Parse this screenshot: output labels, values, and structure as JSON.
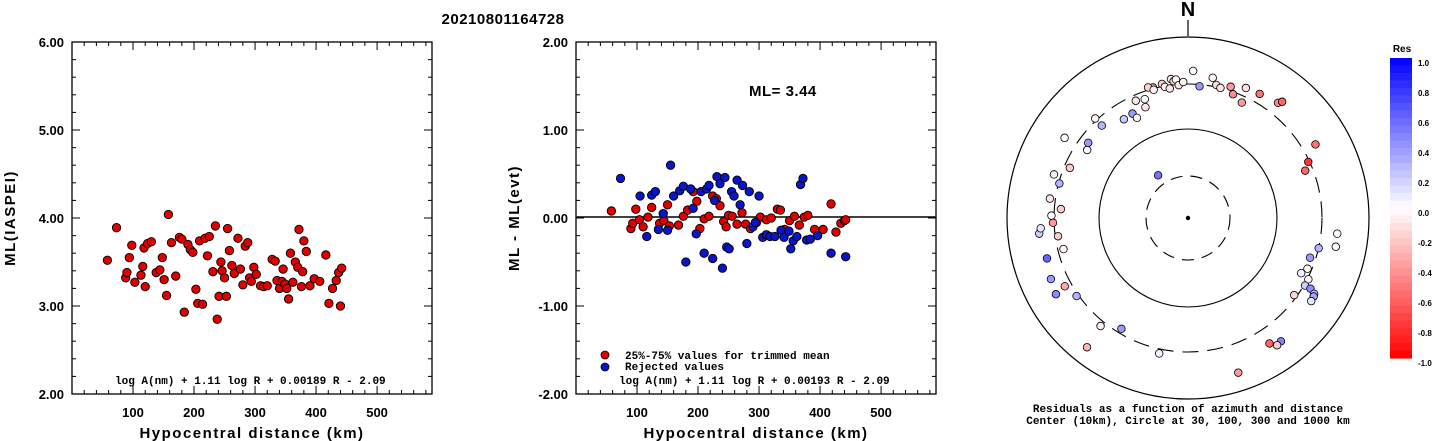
{
  "title": "20210801164728",
  "colors": {
    "red": "#e00000",
    "blue": "#0a14c8"
  },
  "chart_data": [
    {
      "type": "scatter",
      "xlabel": "Hypocentral distance (km)",
      "ylabel": "ML(IASPEI)",
      "xlim": [
        0,
        590
      ],
      "ylim": [
        2.0,
        6.0
      ],
      "xticks": [
        "100",
        "200",
        "300",
        "400",
        "500"
      ],
      "yticks": [
        "2.00",
        "3.00",
        "4.00",
        "5.00",
        "6.00"
      ],
      "formula": "log A(nm) + 1.11 log R + 0.00189 R - 2.09",
      "series": [
        {
          "color": "red",
          "points": [
            [
              58,
              3.52
            ],
            [
              73,
              3.89
            ],
            [
              88,
              3.32
            ],
            [
              90,
              3.38
            ],
            [
              94,
              3.55
            ],
            [
              98,
              3.69
            ],
            [
              103,
              3.27
            ],
            [
              113,
              3.35
            ],
            [
              116,
              3.45
            ],
            [
              118,
              3.66
            ],
            [
              120,
              3.22
            ],
            [
              124,
              3.71
            ],
            [
              130,
              3.73
            ],
            [
              138,
              3.38
            ],
            [
              144,
              3.41
            ],
            [
              148,
              3.55
            ],
            [
              151,
              3.3
            ],
            [
              155,
              3.12
            ],
            [
              158,
              4.04
            ],
            [
              163,
              3.72
            ],
            [
              170,
              3.34
            ],
            [
              176,
              3.78
            ],
            [
              180,
              3.76
            ],
            [
              184,
              2.93
            ],
            [
              190,
              3.7
            ],
            [
              194,
              3.64
            ],
            [
              198,
              3.61
            ],
            [
              203,
              3.19
            ],
            [
              206,
              3.03
            ],
            [
              209,
              3.74
            ],
            [
              214,
              3.02
            ],
            [
              218,
              3.77
            ],
            [
              222,
              3.57
            ],
            [
              225,
              3.79
            ],
            [
              231,
              3.39
            ],
            [
              235,
              3.91
            ],
            [
              238,
              2.85
            ],
            [
              241,
              3.11
            ],
            [
              244,
              3.5
            ],
            [
              246,
              3.4
            ],
            [
              250,
              3.32
            ],
            [
              253,
              3.11
            ],
            [
              255,
              3.88
            ],
            [
              258,
              3.63
            ],
            [
              262,
              3.46
            ],
            [
              266,
              3.37
            ],
            [
              272,
              3.77
            ],
            [
              276,
              3.42
            ],
            [
              280,
              3.24
            ],
            [
              284,
              3.68
            ],
            [
              288,
              3.72
            ],
            [
              291,
              3.32
            ],
            [
              294,
              3.28
            ],
            [
              298,
              3.44
            ],
            [
              302,
              3.36
            ],
            [
              309,
              3.23
            ],
            [
              314,
              3.22
            ],
            [
              320,
              3.23
            ],
            [
              328,
              3.53
            ],
            [
              333,
              3.51
            ],
            [
              336,
              3.29
            ],
            [
              340,
              3.2
            ],
            [
              344,
              3.28
            ],
            [
              346,
              3.42
            ],
            [
              349,
              3.25
            ],
            [
              352,
              3.2
            ],
            [
              355,
              3.08
            ],
            [
              358,
              3.6
            ],
            [
              362,
              3.27
            ],
            [
              366,
              3.5
            ],
            [
              370,
              3.44
            ],
            [
              372,
              3.87
            ],
            [
              376,
              3.22
            ],
            [
              378,
              3.39
            ],
            [
              380,
              3.74
            ],
            [
              384,
              3.62
            ],
            [
              390,
              3.23
            ],
            [
              397,
              3.31
            ],
            [
              406,
              3.28
            ],
            [
              416,
              3.58
            ],
            [
              421,
              3.03
            ],
            [
              427,
              3.2
            ],
            [
              433,
              3.29
            ],
            [
              437,
              3.38
            ],
            [
              440,
              3.0
            ],
            [
              442,
              3.43
            ]
          ]
        }
      ]
    },
    {
      "type": "scatter",
      "xlabel": "Hypocentral distance (km)",
      "ylabel": "ML - ML(evt)",
      "xlim": [
        0,
        590
      ],
      "ylim": [
        -2.0,
        2.0
      ],
      "xticks": [
        "100",
        "200",
        "300",
        "400",
        "500"
      ],
      "yticks": [
        "-2.00",
        "-1.00",
        "0.00",
        "1.00",
        "2.00"
      ],
      "annotation": "ML= 3.44",
      "legend": [
        "25%-75% values for trimmed mean",
        "Rejected values"
      ],
      "formula": "log A(nm) + 1.11 log R + 0.00193 R - 2.09",
      "series": [
        {
          "color": "red",
          "name": "25%-75% values for trimmed mean",
          "points": [
            [
              58,
              0.08
            ],
            [
              90,
              -0.12
            ],
            [
              93,
              -0.06
            ],
            [
              98,
              0.1
            ],
            [
              104,
              -0.02
            ],
            [
              110,
              -0.1
            ],
            [
              118,
              0.01
            ],
            [
              124,
              0.12
            ],
            [
              137,
              -0.06
            ],
            [
              144,
              -0.03
            ],
            [
              150,
              0.15
            ],
            [
              153,
              -0.09
            ],
            [
              168,
              -0.08
            ],
            [
              176,
              0.02
            ],
            [
              183,
              0.09
            ],
            [
              192,
              0.3
            ],
            [
              198,
              0.19
            ],
            [
              203,
              -0.12
            ],
            [
              210,
              -0.01
            ],
            [
              218,
              0.02
            ],
            [
              224,
              0.25
            ],
            [
              230,
              0.22
            ],
            [
              236,
              0.14
            ],
            [
              242,
              -0.04
            ],
            [
              246,
              -0.1
            ],
            [
              250,
              0.03
            ],
            [
              256,
              0.02
            ],
            [
              264,
              -0.07
            ],
            [
              272,
              0.06
            ],
            [
              278,
              -0.07
            ],
            [
              286,
              -0.12
            ],
            [
              296,
              -0.05
            ],
            [
              302,
              0.01
            ],
            [
              312,
              -0.02
            ],
            [
              320,
              0.0
            ],
            [
              330,
              0.1
            ],
            [
              335,
              0.09
            ],
            [
              342,
              -0.13
            ],
            [
              350,
              -0.03
            ],
            [
              358,
              0.02
            ],
            [
              366,
              -0.08
            ],
            [
              374,
              0.01
            ],
            [
              380,
              0.03
            ],
            [
              391,
              -0.13
            ],
            [
              405,
              -0.13
            ],
            [
              418,
              0.16
            ],
            [
              426,
              -0.16
            ],
            [
              434,
              -0.06
            ],
            [
              440,
              -0.03
            ],
            [
              442,
              -0.02
            ]
          ]
        },
        {
          "color": "blue",
          "name": "Rejected values",
          "points": [
            [
              73,
              0.45
            ],
            [
              105,
              0.25
            ],
            [
              116,
              -0.21
            ],
            [
              124,
              0.26
            ],
            [
              130,
              0.3
            ],
            [
              135,
              -0.13
            ],
            [
              143,
              0.05
            ],
            [
              150,
              -0.14
            ],
            [
              155,
              0.6
            ],
            [
              160,
              0.25
            ],
            [
              170,
              0.31
            ],
            [
              176,
              0.36
            ],
            [
              180,
              -0.5
            ],
            [
              188,
              0.33
            ],
            [
              192,
              0.11
            ],
            [
              197,
              -0.18
            ],
            [
              205,
              0.3
            ],
            [
              210,
              -0.4
            ],
            [
              214,
              0.33
            ],
            [
              218,
              0.37
            ],
            [
              224,
              -0.46
            ],
            [
              227,
              0.2
            ],
            [
              231,
              0.47
            ],
            [
              236,
              0.39
            ],
            [
              240,
              -0.57
            ],
            [
              244,
              0.46
            ],
            [
              247,
              -0.33
            ],
            [
              251,
              -0.35
            ],
            [
              255,
              0.3
            ],
            [
              259,
              0.25
            ],
            [
              264,
              0.43
            ],
            [
              269,
              0.15
            ],
            [
              273,
              0.37
            ],
            [
              280,
              -0.29
            ],
            [
              284,
              0.3
            ],
            [
              290,
              -0.1
            ],
            [
              294,
              -0.05
            ],
            [
              300,
              0.25
            ],
            [
              306,
              -0.22
            ],
            [
              312,
              -0.19
            ],
            [
              318,
              -0.21
            ],
            [
              326,
              -0.21
            ],
            [
              336,
              -0.14
            ],
            [
              341,
              -0.22
            ],
            [
              349,
              -0.15
            ],
            [
              352,
              -0.35
            ],
            [
              356,
              -0.26
            ],
            [
              362,
              -0.21
            ],
            [
              368,
              0.38
            ],
            [
              372,
              0.45
            ],
            [
              378,
              -0.25
            ],
            [
              384,
              -0.24
            ],
            [
              396,
              -0.2
            ],
            [
              418,
              -0.4
            ],
            [
              442,
              -0.44
            ]
          ]
        }
      ]
    },
    {
      "type": "scatter",
      "subtype": "polar",
      "north_label": "N",
      "caption": [
        "Residuals as a function of azimuth and distance",
        "Center (10km), Circle at 30, 100, 300 and 1000 km"
      ],
      "colorbar": {
        "title": "Res",
        "labels": [
          "1.0",
          "0.8",
          "0.6",
          "0.4",
          "0.2",
          "0.0",
          "-0.2",
          "-0.4",
          "-0.6",
          "-0.8",
          "-1.0"
        ]
      },
      "points_azimuth_distance_residual": [
        [
          340,
          262,
          0.02
        ],
        [
          345,
          280,
          -0.35
        ],
        [
          343,
          283,
          -0.18
        ],
        [
          345,
          275,
          -0.05
        ],
        [
          349,
          283,
          -0.21
        ],
        [
          350,
          276,
          -0.03
        ],
        [
          352,
          271,
          -0.1
        ],
        [
          353,
          290,
          -0.09
        ],
        [
          354,
          285,
          -0.15
        ],
        [
          355,
          288,
          -0.05
        ],
        [
          356,
          276,
          -0.1
        ],
        [
          358,
          282,
          -0.02
        ],
        [
          2,
          305,
          -0.01
        ],
        [
          5,
          274,
          0.4
        ],
        [
          10,
          295,
          -0.05
        ],
        [
          12,
          282,
          -0.15
        ],
        [
          14,
          278,
          -0.1
        ],
        [
          18,
          286,
          -0.4
        ],
        [
          20,
          273,
          -0.45
        ],
        [
          24,
          295,
          -0.12
        ],
        [
          25,
          264,
          -0.4
        ],
        [
          30,
          297,
          -0.55
        ],
        [
          38,
          303,
          -0.45
        ],
        [
          39,
          310,
          -0.6
        ],
        [
          60,
          305,
          -0.55
        ],
        [
          65,
          275,
          -0.8
        ],
        [
          68,
          262,
          -0.6
        ],
        [
          96,
          311,
          -0.02
        ],
        [
          101,
          312,
          0.02
        ],
        [
          103,
          278,
          0.3
        ],
        [
          108,
          266,
          0.4
        ],
        [
          113,
          269,
          -0.02
        ],
        [
          116,
          261,
          0.05
        ],
        [
          117,
          280,
          -0.03
        ],
        [
          120,
          280,
          0.2
        ],
        [
          120,
          293,
          0.45
        ],
        [
          121,
          305,
          0.25
        ],
        [
          122,
          307,
          0.35
        ],
        [
          124,
          308,
          0.1
        ],
        [
          126,
          272,
          -0.15
        ],
        [
          143,
          320,
          0.5
        ],
        [
          145,
          322,
          -0.2
        ],
        [
          147,
          310,
          -0.6
        ],
        [
          162,
          337,
          -0.4
        ],
        [
          192,
          287,
          0.05
        ],
        [
          211,
          268,
          0.4
        ],
        [
          219,
          288,
          -0.05
        ],
        [
          218,
          340,
          -0.3
        ],
        [
          235,
          282,
          0.3
        ],
        [
          241,
          292,
          -0.35
        ],
        [
          240,
          316,
          0.45
        ],
        [
          246,
          311,
          0.4
        ],
        [
          254,
          304,
          0.6
        ],
        [
          256,
          266,
          -0.05
        ],
        [
          262,
          272,
          -0.2
        ],
        [
          264,
          310,
          0.2
        ],
        [
          266,
          306,
          0.1
        ],
        [
          268,
          280,
          -0.4
        ],
        [
          271,
          283,
          -0.02
        ],
        [
          274,
          264,
          -0.2
        ],
        [
          278,
          289,
          -0.1
        ],
        [
          285,
          276,
          0.3
        ],
        [
          288,
          292,
          0.05
        ],
        [
          293,
          266,
          -0.2
        ],
        [
          304,
          252,
          0.02
        ],
        [
          303,
          305,
          -0.02
        ],
        [
          307,
          259,
          0.4
        ],
        [
          317,
          282,
          -0.03
        ],
        [
          317,
          262,
          0.3
        ],
        [
          327,
          244,
          0.2
        ],
        [
          332,
          245,
          0.4
        ],
        [
          333,
          233,
          -0.05
        ],
        [
          336,
          266,
          -0.1
        ],
        [
          339,
          246,
          -0.1
        ],
        [
          325,
          108,
          0.55
        ]
      ]
    }
  ]
}
